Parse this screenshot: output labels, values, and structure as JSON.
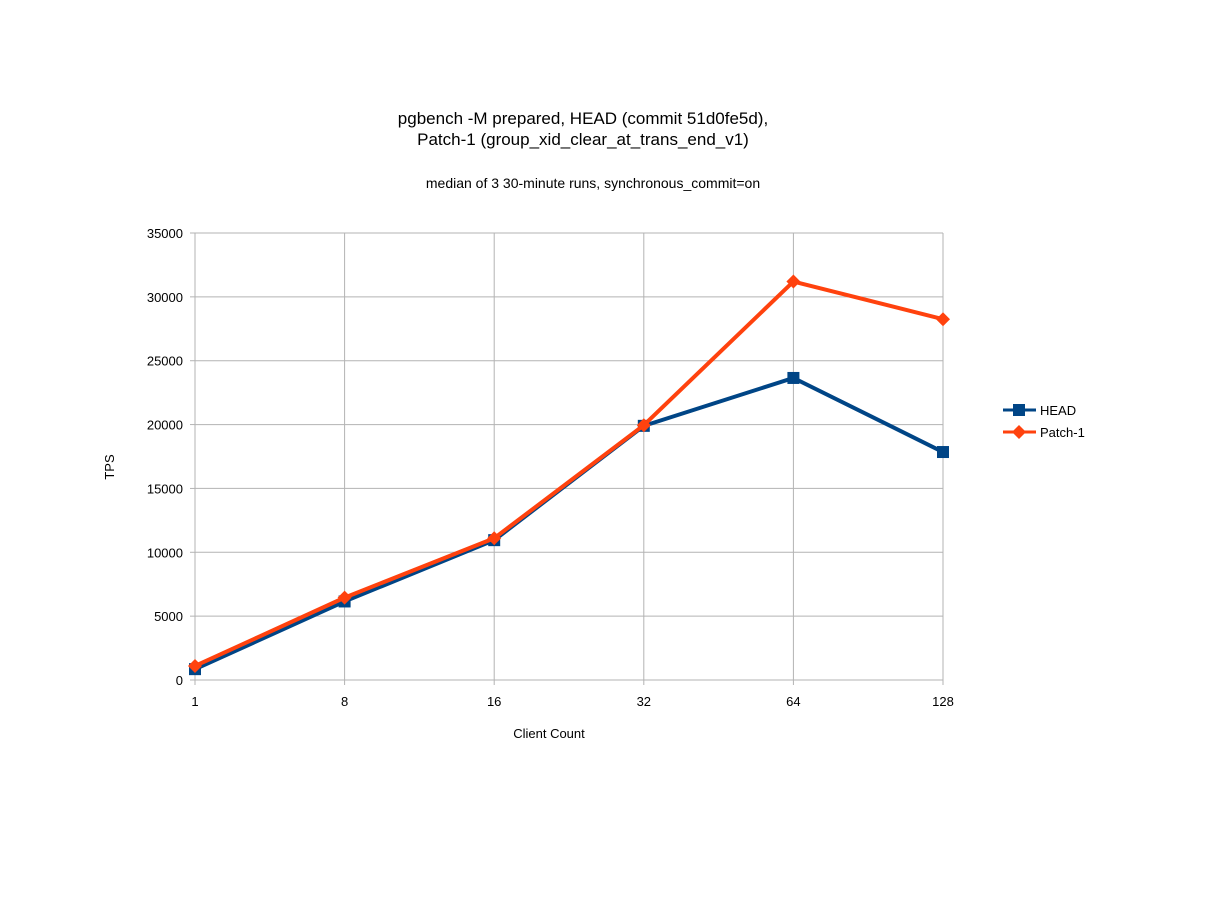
{
  "chart_data": {
    "type": "line",
    "title": [
      "pgbench -M prepared, HEAD (commit 51d0fe5d),",
      "Patch-1 (group_xid_clear_at_trans_end_v1)"
    ],
    "subtitle": "median of 3 30-minute runs, synchronous_commit=on",
    "xlabel": "Client Count",
    "ylabel": "TPS",
    "categories": [
      "1",
      "8",
      "16",
      "32",
      "64",
      "128"
    ],
    "ylim": [
      0,
      35000
    ],
    "yticks": [
      0,
      5000,
      10000,
      15000,
      20000,
      25000,
      30000,
      35000
    ],
    "grid": true,
    "legend_position": "right",
    "series": [
      {
        "name": "HEAD",
        "color": "#004586",
        "marker": "square",
        "values": [
          850,
          6150,
          10950,
          19900,
          23650,
          17850
        ]
      },
      {
        "name": "Patch-1",
        "color": "#ff420e",
        "marker": "diamond",
        "values": [
          1100,
          6450,
          11100,
          19950,
          31200,
          28250
        ]
      }
    ]
  }
}
